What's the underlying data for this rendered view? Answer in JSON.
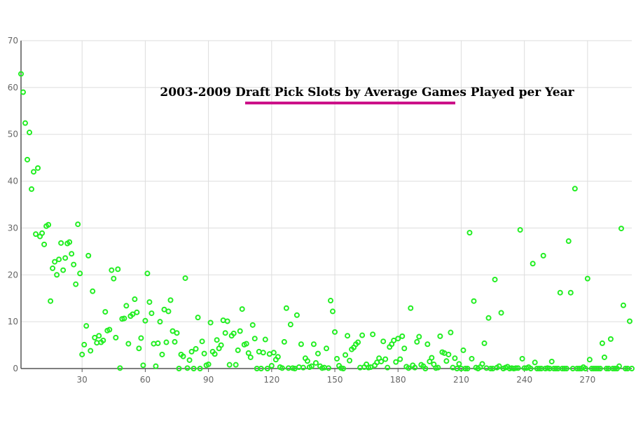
{
  "chart_data": {
    "type": "scatter",
    "title": "2003-2009 Draft Pick Slots by Average Games Played per Year",
    "xlabel": "",
    "ylabel": "",
    "xlim": [
      1,
      291
    ],
    "ylim": [
      0,
      70
    ],
    "xticks": [
      30,
      60,
      90,
      120,
      150,
      180,
      210,
      240,
      270
    ],
    "yticks": [
      0,
      10,
      20,
      30,
      40,
      50,
      60,
      70
    ],
    "grid": true,
    "colors": {
      "marker": "#22ee22",
      "title_underline": "#cc1188",
      "grid": "#dddddd",
      "axis": "#555555"
    },
    "series": [
      {
        "points": [
          [
            1,
            62.9
          ],
          [
            2,
            59
          ],
          [
            3,
            52.4
          ],
          [
            4,
            44.6
          ],
          [
            5,
            50.4
          ],
          [
            6,
            38.3
          ],
          [
            7,
            42
          ],
          [
            8,
            28.7
          ],
          [
            9,
            42.8
          ],
          [
            10,
            28.2
          ],
          [
            11,
            28.9
          ],
          [
            12,
            26.5
          ],
          [
            13,
            30.4
          ],
          [
            14,
            30.7
          ],
          [
            15,
            14.4
          ],
          [
            16,
            21.4
          ],
          [
            17,
            22.8
          ],
          [
            18,
            20
          ],
          [
            19,
            23.3
          ],
          [
            20,
            26.8
          ],
          [
            21,
            21
          ],
          [
            22,
            23.6
          ],
          [
            23,
            26.7
          ],
          [
            24,
            27
          ],
          [
            25,
            24.5
          ],
          [
            26,
            22.2
          ],
          [
            27,
            18
          ],
          [
            28,
            30.8
          ],
          [
            29,
            20.3
          ],
          [
            30,
            3
          ],
          [
            31,
            5.1
          ],
          [
            32,
            9.1
          ],
          [
            33,
            24.1
          ],
          [
            34,
            3.8
          ],
          [
            35,
            16.5
          ],
          [
            36,
            6.6
          ],
          [
            37,
            5.5
          ],
          [
            38,
            7
          ],
          [
            39,
            5.6
          ],
          [
            40,
            6
          ],
          [
            41,
            12.1
          ],
          [
            42,
            8.1
          ],
          [
            43,
            8.3
          ],
          [
            44,
            21
          ],
          [
            45,
            19.2
          ],
          [
            46,
            6.6
          ],
          [
            47,
            21.2
          ],
          [
            48,
            0.1
          ],
          [
            49,
            10.6
          ],
          [
            50,
            10.7
          ],
          [
            51,
            13.4
          ],
          [
            52,
            5.3
          ],
          [
            53,
            11.2
          ],
          [
            54,
            11.6
          ],
          [
            55,
            14.8
          ],
          [
            56,
            12
          ],
          [
            57,
            4.3
          ],
          [
            58,
            6.5
          ],
          [
            59,
            0.7
          ],
          [
            60,
            10.2
          ],
          [
            61,
            20.3
          ],
          [
            62,
            14.2
          ],
          [
            63,
            11.8
          ],
          [
            64,
            5.3
          ],
          [
            65,
            0.5
          ],
          [
            66,
            5.4
          ],
          [
            67,
            10
          ],
          [
            68,
            3
          ],
          [
            69,
            12.6
          ],
          [
            70,
            5.6
          ],
          [
            71,
            12.2
          ],
          [
            72,
            14.6
          ],
          [
            73,
            8
          ],
          [
            74,
            5.7
          ],
          [
            75,
            7.6
          ],
          [
            76,
            0
          ],
          [
            77,
            3
          ],
          [
            78,
            2.6
          ],
          [
            79,
            19.3
          ],
          [
            80,
            0.1
          ],
          [
            81,
            1.8
          ],
          [
            82,
            3.6
          ],
          [
            83,
            0
          ],
          [
            84,
            4.2
          ],
          [
            85,
            10.9
          ],
          [
            86,
            0
          ],
          [
            87,
            5.8
          ],
          [
            88,
            3.2
          ],
          [
            89,
            0.7
          ],
          [
            90,
            0.9
          ],
          [
            91,
            9.8
          ],
          [
            92,
            3.6
          ],
          [
            93,
            3.1
          ],
          [
            94,
            6.1
          ],
          [
            95,
            4.3
          ],
          [
            96,
            5
          ],
          [
            97,
            10.3
          ],
          [
            98,
            7.6
          ],
          [
            99,
            10.1
          ],
          [
            100,
            0.8
          ],
          [
            101,
            7
          ],
          [
            102,
            7.5
          ],
          [
            103,
            0.8
          ],
          [
            104,
            3.9
          ],
          [
            105,
            8
          ],
          [
            106,
            12.7
          ],
          [
            107,
            5.1
          ],
          [
            108,
            5.3
          ],
          [
            109,
            3.3
          ],
          [
            110,
            2.4
          ],
          [
            111,
            9.3
          ],
          [
            112,
            6.4
          ],
          [
            113,
            0
          ],
          [
            114,
            3.6
          ],
          [
            115,
            0
          ],
          [
            116,
            3.4
          ],
          [
            117,
            6.2
          ],
          [
            118,
            0
          ],
          [
            119,
            3.1
          ],
          [
            120,
            0.6
          ],
          [
            121,
            3.4
          ],
          [
            122,
            1.9
          ],
          [
            123,
            2.5
          ],
          [
            124,
            0.3
          ],
          [
            125,
            0.1
          ],
          [
            126,
            5.7
          ],
          [
            127,
            12.9
          ],
          [
            128,
            0.1
          ],
          [
            129,
            9.4
          ],
          [
            130,
            0.1
          ],
          [
            131,
            0
          ],
          [
            132,
            11.4
          ],
          [
            133,
            0.3
          ],
          [
            134,
            5.2
          ],
          [
            135,
            0.2
          ],
          [
            136,
            2.2
          ],
          [
            137,
            1.6
          ],
          [
            138,
            0.3
          ],
          [
            139,
            0.5
          ],
          [
            140,
            5.2
          ],
          [
            141,
            1.2
          ],
          [
            142,
            3.2
          ],
          [
            143,
            0.5
          ],
          [
            144,
            0.1
          ],
          [
            145,
            0.2
          ],
          [
            146,
            4.3
          ],
          [
            147,
            0.1
          ],
          [
            148,
            14.5
          ],
          [
            149,
            12.2
          ],
          [
            150,
            7.8
          ],
          [
            151,
            2.1
          ],
          [
            152,
            0.6
          ],
          [
            153,
            0.1
          ],
          [
            154,
            0
          ],
          [
            155,
            2.9
          ],
          [
            156,
            7
          ],
          [
            157,
            1.7
          ],
          [
            158,
            4.1
          ],
          [
            159,
            4.5
          ],
          [
            160,
            5.2
          ],
          [
            161,
            5.6
          ],
          [
            162,
            0.2
          ],
          [
            163,
            7.1
          ],
          [
            164,
            0.3
          ],
          [
            165,
            0.9
          ],
          [
            166,
            0.2
          ],
          [
            167,
            0.3
          ],
          [
            168,
            7.3
          ],
          [
            169,
            0.7
          ],
          [
            170,
            1.3
          ],
          [
            171,
            2.2
          ],
          [
            172,
            1.5
          ],
          [
            173,
            5.8
          ],
          [
            174,
            2
          ],
          [
            175,
            0.2
          ],
          [
            176,
            4.6
          ],
          [
            177,
            5.2
          ],
          [
            178,
            6
          ],
          [
            179,
            1.4
          ],
          [
            180,
            6.4
          ],
          [
            181,
            2
          ],
          [
            182,
            6.9
          ],
          [
            183,
            4.3
          ],
          [
            184,
            0.4
          ],
          [
            185,
            0.1
          ],
          [
            186,
            12.9
          ],
          [
            187,
            0.7
          ],
          [
            188,
            0.2
          ],
          [
            189,
            5.7
          ],
          [
            190,
            6.8
          ],
          [
            191,
            0.8
          ],
          [
            192,
            0.5
          ],
          [
            193,
            0
          ],
          [
            194,
            5.2
          ],
          [
            195,
            1.5
          ],
          [
            196,
            2.3
          ],
          [
            197,
            0.9
          ],
          [
            198,
            0.1
          ],
          [
            199,
            0.2
          ],
          [
            200,
            6.9
          ],
          [
            201,
            3.5
          ],
          [
            202,
            3.3
          ],
          [
            203,
            1.6
          ],
          [
            204,
            3
          ],
          [
            205,
            7.7
          ],
          [
            206,
            0.2
          ],
          [
            207,
            2.2
          ],
          [
            208,
            0
          ],
          [
            209,
            1
          ],
          [
            210,
            0
          ],
          [
            211,
            3.9
          ],
          [
            212,
            0
          ],
          [
            213,
            0
          ],
          [
            214,
            29
          ],
          [
            215,
            2.1
          ],
          [
            216,
            14.4
          ],
          [
            217,
            0.2
          ],
          [
            218,
            0
          ],
          [
            219,
            0.3
          ],
          [
            220,
            1
          ],
          [
            221,
            5.4
          ],
          [
            222,
            0.1
          ],
          [
            223,
            10.8
          ],
          [
            224,
            0
          ],
          [
            225,
            0
          ],
          [
            226,
            19
          ],
          [
            227,
            0.2
          ],
          [
            228,
            0.5
          ],
          [
            229,
            11.9
          ],
          [
            230,
            0
          ],
          [
            231,
            0.2
          ],
          [
            232,
            0.4
          ],
          [
            233,
            0
          ],
          [
            234,
            0.1
          ],
          [
            235,
            0
          ],
          [
            236,
            0.1
          ],
          [
            237,
            0.1
          ],
          [
            238,
            29.6
          ],
          [
            239,
            2.1
          ],
          [
            240,
            0.1
          ],
          [
            241,
            0.1
          ],
          [
            242,
            0.3
          ],
          [
            243,
            0
          ],
          [
            244,
            22.4
          ],
          [
            245,
            1.3
          ],
          [
            246,
            0
          ],
          [
            247,
            0
          ],
          [
            248,
            0
          ],
          [
            249,
            24.1
          ],
          [
            250,
            0
          ],
          [
            251,
            0.1
          ],
          [
            252,
            0
          ],
          [
            253,
            1.5
          ],
          [
            254,
            0
          ],
          [
            255,
            0
          ],
          [
            256,
            0
          ],
          [
            257,
            16.2
          ],
          [
            258,
            0
          ],
          [
            259,
            0
          ],
          [
            260,
            0
          ],
          [
            261,
            27.2
          ],
          [
            262,
            16.2
          ],
          [
            263,
            0
          ],
          [
            264,
            38.4
          ],
          [
            265,
            0
          ],
          [
            266,
            0
          ],
          [
            267,
            0
          ],
          [
            268,
            0.3
          ],
          [
            269,
            0
          ],
          [
            270,
            19.2
          ],
          [
            271,
            1.9
          ],
          [
            272,
            0
          ],
          [
            273,
            0
          ],
          [
            274,
            0
          ],
          [
            275,
            0
          ],
          [
            276,
            0
          ],
          [
            277,
            5.4
          ],
          [
            278,
            2.4
          ],
          [
            279,
            0
          ],
          [
            280,
            0
          ],
          [
            281,
            6.3
          ],
          [
            282,
            0
          ],
          [
            283,
            0
          ],
          [
            284,
            0
          ],
          [
            285,
            0.5
          ],
          [
            286,
            29.9
          ],
          [
            287,
            13.5
          ],
          [
            288,
            0
          ],
          [
            289,
            0
          ],
          [
            290,
            10.1
          ],
          [
            291,
            0
          ]
        ]
      }
    ]
  }
}
